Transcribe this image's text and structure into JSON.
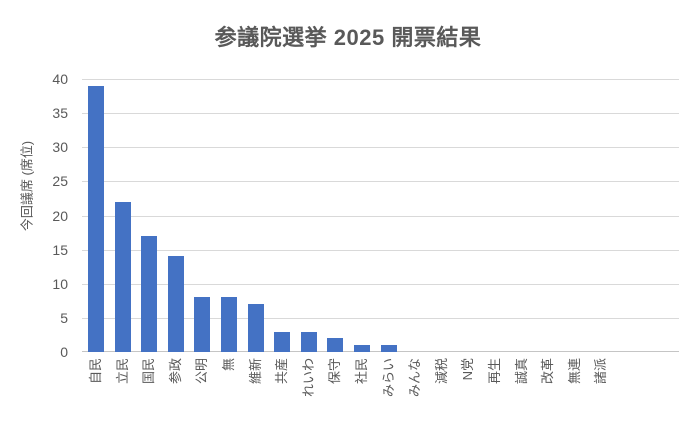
{
  "chart_data": {
    "type": "bar",
    "title": "参議院選挙 2025 開票結果",
    "ylabel": "今回議席 (席位)",
    "xlabel": "",
    "categories": [
      "自民",
      "立民",
      "国民",
      "参政",
      "公明",
      "無",
      "維新",
      "共産",
      "れいわ",
      "保守",
      "社民",
      "みらい",
      "みんな",
      "減税",
      "N党",
      "再生",
      "誠真",
      "改革",
      "無連",
      "諸派"
    ],
    "values": [
      39,
      22,
      17,
      14,
      8,
      8,
      7,
      3,
      3,
      2,
      1,
      1,
      0,
      0,
      0,
      0,
      0,
      0,
      0,
      0
    ],
    "ylim": [
      0,
      40
    ],
    "yticks": [
      0,
      5,
      10,
      15,
      20,
      25,
      30,
      35,
      40
    ],
    "grid": true,
    "legend": false,
    "colors": {
      "bar": "#4472C4",
      "text": "#595959",
      "gridline": "#D9D9D9",
      "axis_line": "#C5C5C5",
      "background": "#FFFFFF"
    }
  }
}
